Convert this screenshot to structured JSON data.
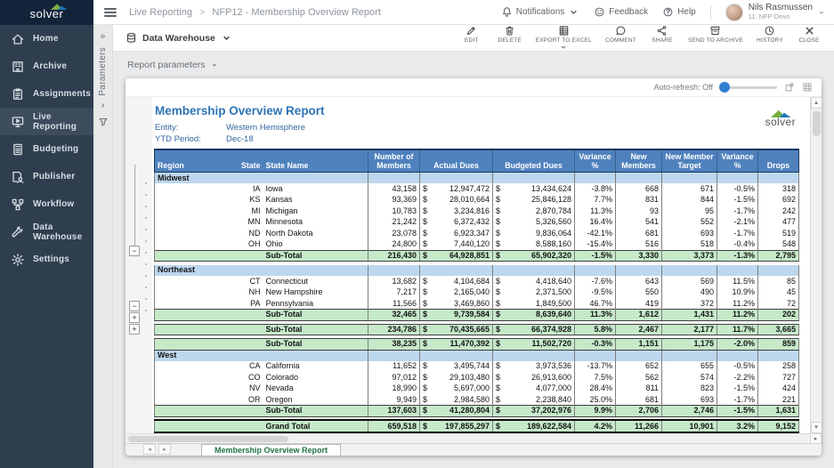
{
  "app": {
    "brand": "solver",
    "breadcrumb": {
      "section": "Live Reporting",
      "separator": ">",
      "title": "NFP12 - Membership Overview Report"
    },
    "topbar": {
      "notifications_label": "Notifications",
      "feedback_label": "Feedback",
      "help_label": "Help",
      "user_name": "Nils Rasmussen",
      "user_subtitle": "11. NFP Devo"
    }
  },
  "sidebar": {
    "items": [
      {
        "id": "home",
        "label": "Home",
        "icon": "home",
        "active": false
      },
      {
        "id": "archive",
        "label": "Archive",
        "icon": "archive",
        "active": false
      },
      {
        "id": "assignments",
        "label": "Assignments",
        "icon": "assignments",
        "active": false
      },
      {
        "id": "live-reporting",
        "label": "Live Reporting",
        "icon": "live-reporting",
        "active": true
      },
      {
        "id": "budgeting",
        "label": "Budgeting",
        "icon": "budgeting",
        "active": false
      },
      {
        "id": "publisher",
        "label": "Publisher",
        "icon": "publisher",
        "active": false
      },
      {
        "id": "workflow",
        "label": "Workflow",
        "icon": "workflow",
        "active": false
      },
      {
        "id": "data-warehouse",
        "label": "Data Warehouse",
        "icon": "data-warehouse",
        "active": false
      },
      {
        "id": "settings",
        "label": "Settings",
        "icon": "settings",
        "active": false
      }
    ]
  },
  "toolbar": {
    "source_label": "Data Warehouse",
    "actions": [
      {
        "id": "edit",
        "label": "EDIT",
        "icon": "edit",
        "caret": false
      },
      {
        "id": "delete",
        "label": "DELETE",
        "icon": "delete",
        "caret": false
      },
      {
        "id": "export-to-excel",
        "label": "EXPORT TO EXCEL",
        "icon": "excel",
        "caret": true
      },
      {
        "id": "comment",
        "label": "COMMENT",
        "icon": "comment",
        "caret": false
      },
      {
        "id": "share",
        "label": "SHARE",
        "icon": "share",
        "caret": false
      },
      {
        "id": "send-to-archive",
        "label": "SEND TO ARCHIVE",
        "icon": "send-archive",
        "caret": false
      },
      {
        "id": "history",
        "label": "HISTORY",
        "icon": "history",
        "caret": false
      },
      {
        "id": "close",
        "label": "CLOSE",
        "icon": "close",
        "caret": false
      }
    ]
  },
  "side_panel": {
    "label": "Parameters"
  },
  "params_bar": {
    "label": "Report parameters"
  },
  "refresh": {
    "label": "Auto-refresh: Off",
    "state": "Off"
  },
  "icons": {
    "double_chevron": "»",
    "minus": "−",
    "plus": "+",
    "up_arrow": "▴",
    "down_arrow": "▾",
    "left_arrow": "◂",
    "right_arrow": "▸"
  },
  "colors": {
    "table_header_bg": "#4f81bd",
    "region_row_bg": "#bdd7ee",
    "subtotal_row_bg": "#c6e9c9",
    "title_blue": "#2e75b6",
    "tab_green": "#1e7145",
    "slider_blue": "#2f7fd0",
    "sidebar_bg": "#2f3e4f",
    "brand_navy": "#13233a"
  },
  "report": {
    "title": "Membership Overview Report",
    "entity_label": "Entity:",
    "entity_value": "Western Hemisphere",
    "period_label": "YTD Period:",
    "period_value": "Dec-18",
    "brand": "solver",
    "sheet_tab": "Membership Overview Report",
    "table": {
      "currency": "$",
      "columns": [
        "Region",
        "State",
        "State Name",
        "Number of Members",
        "Actual Dues",
        "Budgeted Dues",
        "Variance %",
        "New Members",
        "New Member Target",
        "Variance %",
        "Drops"
      ],
      "rows": [
        {
          "type": "region",
          "label": "Midwest"
        },
        {
          "type": "detail",
          "state": "IA",
          "name": "Iowa",
          "members": "43,158",
          "actual": "12,947,472",
          "budgeted": "13,434,624",
          "var1": "-3.8%",
          "new_members": "668",
          "target": "671",
          "var2": "-0.5%",
          "drops": "318"
        },
        {
          "type": "detail",
          "state": "KS",
          "name": "Kansas",
          "members": "93,369",
          "actual": "28,010,664",
          "budgeted": "25,846,128",
          "var1": "7.7%",
          "new_members": "831",
          "target": "844",
          "var2": "-1.5%",
          "drops": "692"
        },
        {
          "type": "detail",
          "state": "MI",
          "name": "Michigan",
          "members": "10,783",
          "actual": "3,234,816",
          "budgeted": "2,870,784",
          "var1": "11.3%",
          "new_members": "93",
          "target": "95",
          "var2": "-1.7%",
          "drops": "242"
        },
        {
          "type": "detail",
          "state": "MN",
          "name": "Minnesota",
          "members": "21,242",
          "actual": "6,372,432",
          "budgeted": "5,326,560",
          "var1": "16.4%",
          "new_members": "541",
          "target": "552",
          "var2": "-2.1%",
          "drops": "477"
        },
        {
          "type": "detail",
          "state": "ND",
          "name": "North Dakota",
          "members": "23,078",
          "actual": "6,923,347",
          "budgeted": "9,836,064",
          "var1": "-42.1%",
          "new_members": "681",
          "target": "693",
          "var2": "-1.7%",
          "drops": "519"
        },
        {
          "type": "detail",
          "state": "OH",
          "name": "Ohio",
          "members": "24,800",
          "actual": "7,440,120",
          "budgeted": "8,588,160",
          "var1": "-15.4%",
          "new_members": "516",
          "target": "518",
          "var2": "-0.4%",
          "drops": "548"
        },
        {
          "type": "subtotal",
          "label": "Sub-Total",
          "members": "216,430",
          "actual": "64,928,851",
          "budgeted": "65,902,320",
          "var1": "-1.5%",
          "new_members": "3,330",
          "target": "3,373",
          "var2": "-1.3%",
          "drops": "2,795"
        },
        {
          "type": "gap"
        },
        {
          "type": "region",
          "label": "Northeast"
        },
        {
          "type": "detail",
          "state": "CT",
          "name": "Connecticut",
          "members": "13,682",
          "actual": "4,104,684",
          "budgeted": "4,418,640",
          "var1": "-7.6%",
          "new_members": "643",
          "target": "569",
          "var2": "11.5%",
          "drops": "85"
        },
        {
          "type": "detail",
          "state": "NH",
          "name": "New Hampshire",
          "members": "7,217",
          "actual": "2,165,040",
          "budgeted": "2,371,500",
          "var1": "-9.5%",
          "new_members": "550",
          "target": "490",
          "var2": "10.9%",
          "drops": "45"
        },
        {
          "type": "detail",
          "state": "PA",
          "name": "Pennsylvania",
          "members": "11,566",
          "actual": "3,469,860",
          "budgeted": "1,849,500",
          "var1": "46.7%",
          "new_members": "419",
          "target": "372",
          "var2": "11.2%",
          "drops": "72"
        },
        {
          "type": "subtotal",
          "label": "Sub-Total",
          "members": "32,465",
          "actual": "9,739,584",
          "budgeted": "8,639,640",
          "var1": "11.3%",
          "new_members": "1,612",
          "target": "1,431",
          "var2": "11.2%",
          "drops": "202"
        },
        {
          "type": "gap"
        },
        {
          "type": "subtotal",
          "label": "Sub-Total",
          "members": "234,786",
          "actual": "70,435,665",
          "budgeted": "66,374,928",
          "var1": "5.8%",
          "new_members": "2,467",
          "target": "2,177",
          "var2": "11.7%",
          "drops": "3,665"
        },
        {
          "type": "gap"
        },
        {
          "type": "subtotal",
          "label": "Sub-Total",
          "members": "38,235",
          "actual": "11,470,392",
          "budgeted": "11,502,720",
          "var1": "-0.3%",
          "new_members": "1,151",
          "target": "1,175",
          "var2": "-2.0%",
          "drops": "859"
        },
        {
          "type": "region",
          "label": "West"
        },
        {
          "type": "detail",
          "state": "CA",
          "name": "California",
          "members": "11,652",
          "actual": "3,495,744",
          "budgeted": "3,973,536",
          "var1": "-13.7%",
          "new_members": "652",
          "target": "655",
          "var2": "-0.5%",
          "drops": "258"
        },
        {
          "type": "detail",
          "state": "CO",
          "name": "Colorado",
          "members": "97,012",
          "actual": "29,103,480",
          "budgeted": "26,913,600",
          "var1": "7.5%",
          "new_members": "562",
          "target": "574",
          "var2": "-2.2%",
          "drops": "727"
        },
        {
          "type": "detail",
          "state": "NV",
          "name": "Nevada",
          "members": "18,990",
          "actual": "5,697,000",
          "budgeted": "4,077,000",
          "var1": "28.4%",
          "new_members": "811",
          "target": "823",
          "var2": "-1.5%",
          "drops": "424"
        },
        {
          "type": "detail",
          "state": "OR",
          "name": "Oregon",
          "members": "9,949",
          "actual": "2,984,580",
          "budgeted": "2,238,840",
          "var1": "25.0%",
          "new_members": "681",
          "target": "693",
          "var2": "-1.7%",
          "drops": "221"
        },
        {
          "type": "subtotal",
          "label": "Sub-Total",
          "members": "137,603",
          "actual": "41,280,804",
          "budgeted": "37,202,976",
          "var1": "9.9%",
          "new_members": "2,706",
          "target": "2,746",
          "var2": "-1.5%",
          "drops": "1,631"
        },
        {
          "type": "gap"
        },
        {
          "type": "grandtotal",
          "label": "Grand Total",
          "members": "659,518",
          "actual": "197,855,297",
          "budgeted": "189,622,584",
          "var1": "4.2%",
          "new_members": "11,266",
          "target": "10,901",
          "var2": "3.2%",
          "drops": "9,152"
        }
      ]
    }
  }
}
